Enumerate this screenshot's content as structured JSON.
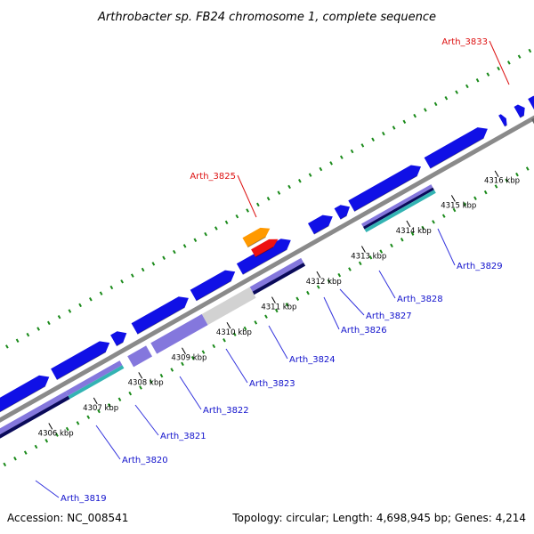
{
  "title": "Arthrobacter sp. FB24 chromosome 1, complete sequence",
  "footer": {
    "accession": "Accession: NC_008541",
    "summary": "Topology: circular; Length: 4,698,945 bp; Genes: 4,214"
  },
  "colors": {
    "background": "#ffffff",
    "backbone": "#8a8a8a",
    "forward_gene": "#1010e6",
    "reverse_gene": "#1010e6",
    "highlight_gene": "#ee1111",
    "orange_gene": "#ff9900",
    "pseudo_gene": "#666666",
    "feature_lavender": "#8477dd",
    "feature_light_gray": "#d2d2d2",
    "feature_navy": "#0a0a5a",
    "feature_teal": "#33b3b3",
    "tick_mark": "#1a8a1a",
    "label_blue": "#1111cc",
    "label_red": "#dd1111",
    "label_connector_blue": "#3333dd",
    "label_connector_red": "#dd1111"
  },
  "scale_ticks": [
    {
      "label": "4306 kbp"
    },
    {
      "label": "4307 kbp"
    },
    {
      "label": "4308 kbp"
    },
    {
      "label": "4309 kbp"
    },
    {
      "label": "4310 kbp"
    },
    {
      "label": "4311 kbp"
    },
    {
      "label": "4312 kbp"
    },
    {
      "label": "4313 kbp"
    },
    {
      "label": "4314 kbp"
    },
    {
      "label": "4315 kbp"
    },
    {
      "label": "4316 kbp"
    }
  ],
  "gene_labels": [
    {
      "name": "Arth_3819",
      "color": "label_blue"
    },
    {
      "name": "Arth_3820",
      "color": "label_blue"
    },
    {
      "name": "Arth_3821",
      "color": "label_blue"
    },
    {
      "name": "Arth_3822",
      "color": "label_blue"
    },
    {
      "name": "Arth_3823",
      "color": "label_blue"
    },
    {
      "name": "Arth_3824",
      "color": "label_blue"
    },
    {
      "name": "Arth_3826",
      "color": "label_blue"
    },
    {
      "name": "Arth_3827",
      "color": "label_blue"
    },
    {
      "name": "Arth_3828",
      "color": "label_blue"
    },
    {
      "name": "Arth_3829",
      "color": "label_blue"
    },
    {
      "name": "Arth_3825",
      "color": "label_red"
    },
    {
      "name": "Arth_3833",
      "color": "label_red"
    }
  ]
}
